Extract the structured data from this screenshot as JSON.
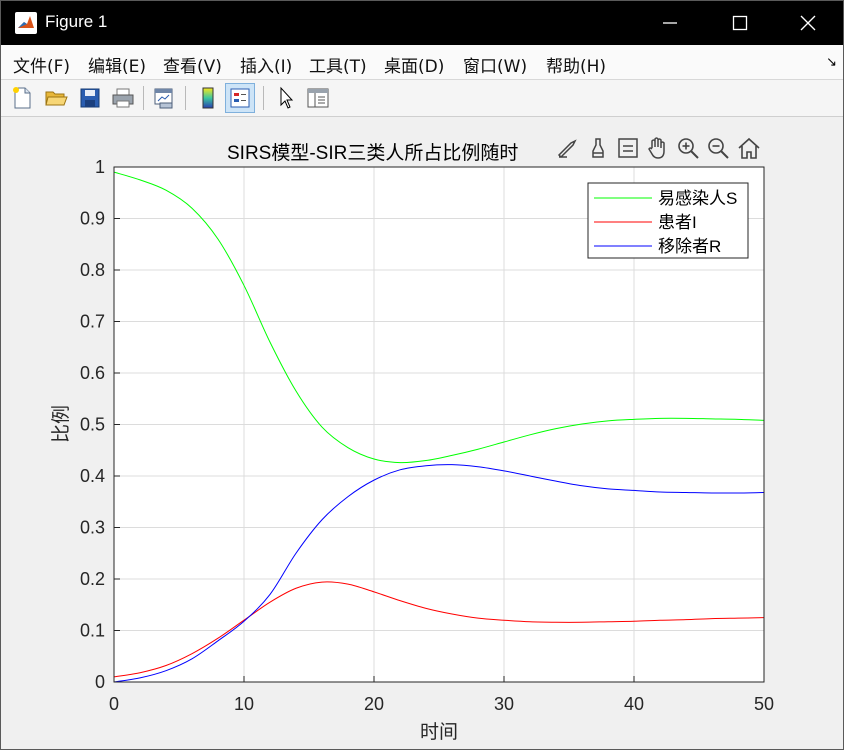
{
  "window": {
    "title": "Figure 1"
  },
  "menu": [
    "文件(F)",
    "编辑(E)",
    "查看(V)",
    "插入(I)",
    "工具(T)",
    "桌面(D)",
    "窗口(W)",
    "帮助(H)"
  ],
  "toolbar": [
    "new-figure",
    "open-file",
    "save",
    "print",
    "link-plot",
    "colorbar",
    "legend",
    "edit-plot",
    "property-inspector"
  ],
  "axes_toolbar": [
    "brush",
    "data-tips",
    "pan",
    "zoom-in",
    "zoom-out",
    "restore-view"
  ],
  "chart_data": {
    "type": "line",
    "title": "SIRS模型-SIR三类人所占比例随时",
    "xlabel": "时间",
    "ylabel": "比例",
    "xlim": [
      0,
      50
    ],
    "ylim": [
      0,
      1
    ],
    "xticks": [
      "0",
      "10",
      "20",
      "30",
      "40",
      "50"
    ],
    "yticks": [
      "0",
      "0.1",
      "0.2",
      "0.3",
      "0.4",
      "0.5",
      "0.6",
      "0.7",
      "0.8",
      "0.9",
      "1"
    ],
    "grid": true,
    "legend_position": "top-right",
    "x": [
      0,
      2,
      4,
      6,
      8,
      10,
      12,
      14,
      16,
      18,
      20,
      22,
      24,
      26,
      28,
      30,
      32,
      34,
      36,
      38,
      40,
      42,
      44,
      46,
      48,
      50
    ],
    "series": [
      {
        "name": "易感染人S",
        "color": "#00ff00",
        "values": [
          0.99,
          0.975,
          0.955,
          0.92,
          0.86,
          0.77,
          0.66,
          0.565,
          0.495,
          0.455,
          0.433,
          0.426,
          0.43,
          0.44,
          0.452,
          0.466,
          0.48,
          0.492,
          0.501,
          0.507,
          0.51,
          0.512,
          0.512,
          0.511,
          0.51,
          0.508
        ]
      },
      {
        "name": "患者I",
        "color": "#ff0000",
        "values": [
          0.01,
          0.018,
          0.032,
          0.055,
          0.085,
          0.12,
          0.155,
          0.182,
          0.194,
          0.19,
          0.175,
          0.158,
          0.143,
          0.132,
          0.124,
          0.12,
          0.117,
          0.116,
          0.116,
          0.117,
          0.118,
          0.12,
          0.121,
          0.123,
          0.124,
          0.125
        ]
      },
      {
        "name": "移除者R",
        "color": "#0000ff",
        "values": [
          0.0,
          0.008,
          0.022,
          0.045,
          0.08,
          0.118,
          0.17,
          0.25,
          0.315,
          0.36,
          0.392,
          0.412,
          0.42,
          0.422,
          0.418,
          0.41,
          0.4,
          0.39,
          0.381,
          0.375,
          0.372,
          0.369,
          0.368,
          0.367,
          0.367,
          0.368
        ]
      }
    ]
  }
}
